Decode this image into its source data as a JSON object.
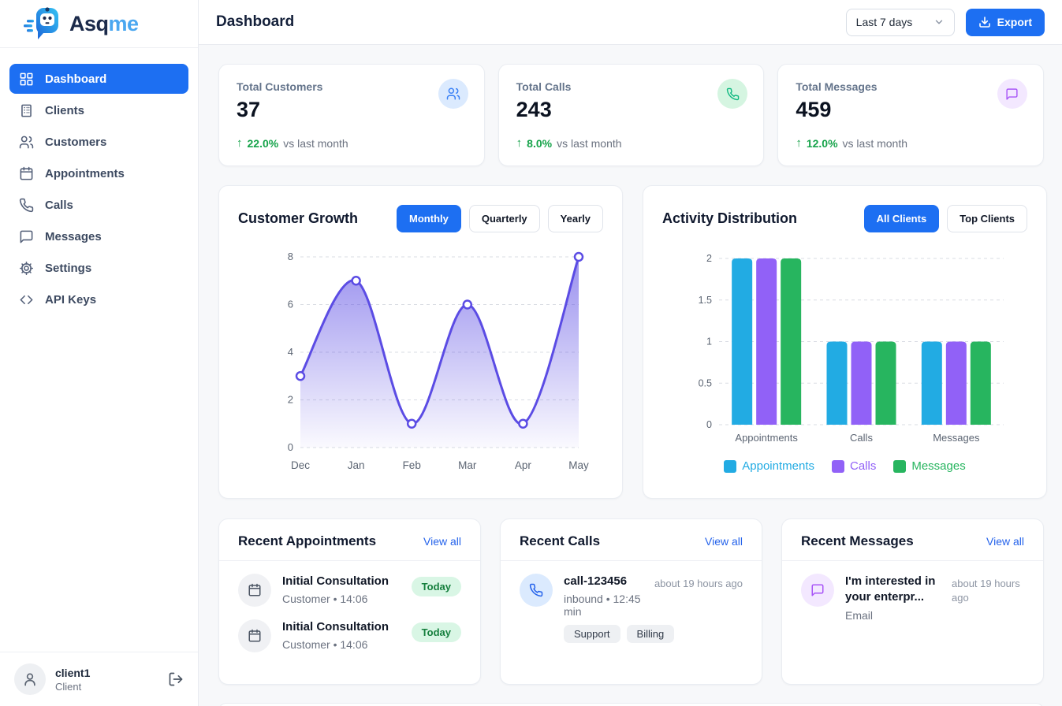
{
  "brand": {
    "name_a": "Asq",
    "name_b": "me"
  },
  "header": {
    "title": "Dashboard",
    "range_label": "Last 7 days",
    "export_label": "Export"
  },
  "sidebar": {
    "items": [
      {
        "label": "Dashboard"
      },
      {
        "label": "Clients"
      },
      {
        "label": "Customers"
      },
      {
        "label": "Appointments"
      },
      {
        "label": "Calls"
      },
      {
        "label": "Messages"
      },
      {
        "label": "Settings"
      },
      {
        "label": "API Keys"
      }
    ],
    "user_name": "client1",
    "user_role": "Client"
  },
  "stats": [
    {
      "label": "Total Customers",
      "value": "37",
      "delta": "22.0%",
      "compare": "vs last month"
    },
    {
      "label": "Total Calls",
      "value": "243",
      "delta": "8.0%",
      "compare": "vs last month"
    },
    {
      "label": "Total Messages",
      "value": "459",
      "delta": "12.0%",
      "compare": "vs last month"
    }
  ],
  "growth_card": {
    "title": "Customer Growth",
    "tabs": [
      "Monthly",
      "Quarterly",
      "Yearly"
    ],
    "active_tab": "Monthly"
  },
  "activity_card": {
    "title": "Activity Distribution",
    "tabs": [
      "All Clients",
      "Top Clients"
    ],
    "active_tab": "All Clients"
  },
  "chart_data": [
    {
      "type": "area",
      "title": "Customer Growth",
      "x": [
        "Dec",
        "Jan",
        "Feb",
        "Mar",
        "Apr",
        "May"
      ],
      "series": [
        {
          "name": "Customers",
          "values": [
            3,
            7,
            1,
            6,
            1,
            8
          ],
          "color": "#5b4ce4"
        }
      ],
      "ylim": [
        0,
        8
      ],
      "yticks": [
        0,
        2,
        4,
        6,
        8
      ],
      "grid": true,
      "legend_position": "none"
    },
    {
      "type": "bar",
      "title": "Activity Distribution",
      "categories": [
        "Appointments",
        "Calls",
        "Messages"
      ],
      "series": [
        {
          "name": "Appointments",
          "values": [
            2,
            1,
            1
          ],
          "color": "#22abe3"
        },
        {
          "name": "Calls",
          "values": [
            2,
            1,
            1
          ],
          "color": "#9161f7"
        },
        {
          "name": "Messages",
          "values": [
            2,
            1,
            1
          ],
          "color": "#27b55f"
        }
      ],
      "ylim": [
        0,
        2
      ],
      "yticks": [
        0,
        0.5,
        1,
        1.5,
        2
      ],
      "grid": true,
      "legend_position": "bottom"
    }
  ],
  "recent_appointments": {
    "title": "Recent Appointments",
    "view_all": "View all",
    "items": [
      {
        "title": "Initial Consultation",
        "subtitle": "Customer • 14:06",
        "badge": "Today"
      },
      {
        "title": "Initial Consultation",
        "subtitle": "Customer • 14:06",
        "badge": "Today"
      }
    ]
  },
  "recent_calls": {
    "title": "Recent Calls",
    "view_all": "View all",
    "items": [
      {
        "title": "call-123456",
        "time": "about 19 hours ago",
        "subtitle": "inbound • 12:45 min",
        "tags": [
          "Support",
          "Billing"
        ]
      }
    ]
  },
  "recent_messages": {
    "title": "Recent Messages",
    "view_all": "View all",
    "items": [
      {
        "title": "I'm interested in your enterpr...",
        "time": "about 19 hours ago",
        "subtitle": "Email"
      }
    ]
  },
  "colors": {
    "primary": "#1d6ff2",
    "positive": "#16a34a",
    "line": "#5b4ce4",
    "bar_blue": "#22abe3",
    "bar_purple": "#9161f7",
    "bar_green": "#27b55f"
  }
}
